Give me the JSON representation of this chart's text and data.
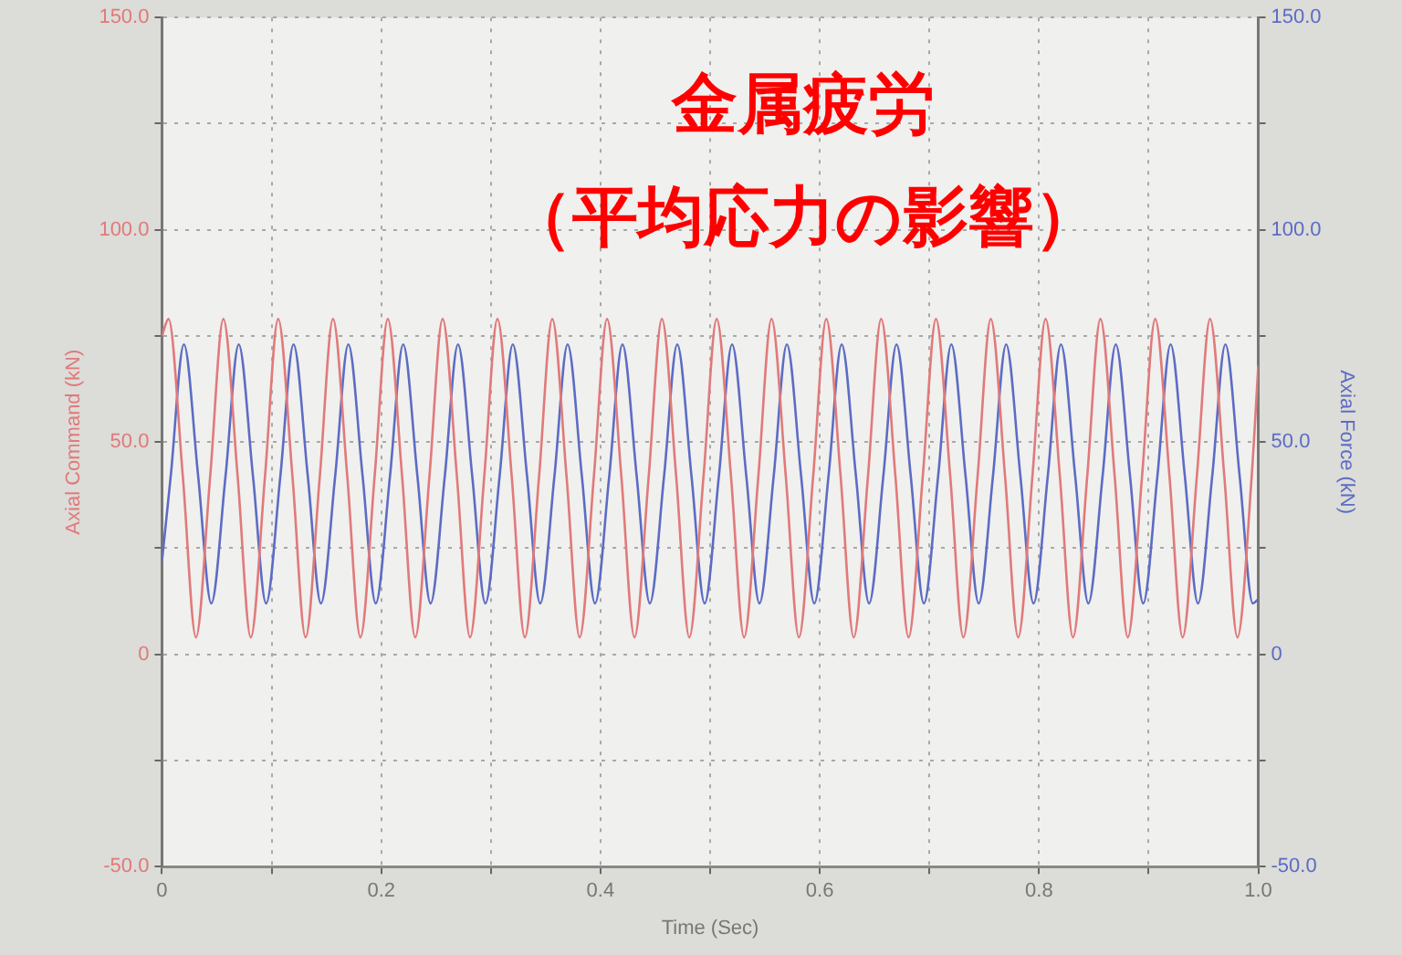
{
  "chart_data": {
    "type": "line",
    "title": "金属疲労",
    "subtitle": "（平均応力の影響）",
    "xlabel": "Time (Sec)",
    "ylabel": "Axial Command (kN)",
    "y2label": "Axial Force (kN)",
    "xlim": [
      0,
      1.0
    ],
    "xticks": [
      0,
      {
        "value": 0.1,
        "label": null
      },
      {
        "value": 0.2,
        "label": "0.2"
      },
      {
        "value": 0.3,
        "label": null
      },
      {
        "value": 0.4,
        "label": "0.4"
      },
      {
        "value": 0.5,
        "label": null
      },
      {
        "value": 0.6,
        "label": "0.6"
      },
      {
        "value": 0.7,
        "label": null
      },
      {
        "value": 0.8,
        "label": "0.8"
      },
      {
        "value": 0.9,
        "label": null
      },
      {
        "value": 1.0,
        "label": "1.0"
      }
    ],
    "ylim": [
      -50,
      150
    ],
    "yticks": [
      {
        "value": -50,
        "label": "-50.0"
      },
      {
        "value": -25,
        "label": null
      },
      0,
      {
        "value": 25,
        "label": null
      },
      {
        "value": 50,
        "label": "50.0"
      },
      {
        "value": 75,
        "label": null
      },
      {
        "value": 100,
        "label": "100.0"
      },
      {
        "value": 125,
        "label": null
      },
      {
        "value": 150,
        "label": "150.0"
      }
    ],
    "y2lim": [
      -50,
      150
    ],
    "y2ticks": [
      {
        "value": -50,
        "label": "-50.0"
      },
      {
        "value": -25,
        "label": null
      },
      0,
      {
        "value": 25,
        "label": null
      },
      {
        "value": 50,
        "label": "50.0"
      },
      {
        "value": 75,
        "label": null
      },
      {
        "value": 100,
        "label": "100.0"
      },
      {
        "value": 125,
        "label": null
      },
      {
        "value": 150,
        "label": "150.0"
      }
    ],
    "grid": true,
    "marker": "none",
    "line_style": "solid",
    "series": [
      {
        "color": "#e07a7a",
        "x": [
          0,
          0.006,
          0.019,
          0.031,
          0.044,
          0.056,
          0.069,
          0.081,
          0.094,
          0.106,
          0.119,
          0.131,
          0.144,
          0.156,
          0.169,
          0.181,
          0.194,
          0.206,
          0.219,
          0.231,
          0.244,
          0.256,
          0.269,
          0.281,
          0.294,
          0.306,
          0.319,
          0.331,
          0.344,
          0.356,
          0.369,
          0.381,
          0.394,
          0.406,
          0.419,
          0.431,
          0.444,
          0.456,
          0.469,
          0.481,
          0.494,
          0.506,
          0.519,
          0.531,
          0.544,
          0.556,
          0.569,
          0.581,
          0.594,
          0.606,
          0.619,
          0.631,
          0.644,
          0.656,
          0.669,
          0.681,
          0.694,
          0.706,
          0.719,
          0.731,
          0.744,
          0.756,
          0.769,
          0.781,
          0.794,
          0.806,
          0.819,
          0.831,
          0.844,
          0.856,
          0.869,
          0.881,
          0.894,
          0.906,
          0.919,
          0.931,
          0.944,
          0.956,
          0.969,
          0.981,
          0.994,
          1.0
        ],
        "values": [
          75,
          79,
          42,
          4,
          42,
          79,
          42,
          4,
          42,
          79,
          42,
          4,
          42,
          79,
          42,
          4,
          42,
          79,
          42,
          4,
          42,
          79,
          42,
          4,
          42,
          79,
          42,
          4,
          42,
          79,
          42,
          4,
          42,
          79,
          42,
          4,
          42,
          79,
          42,
          4,
          42,
          79,
          42,
          4,
          42,
          79,
          42,
          4,
          42,
          79,
          42,
          4,
          42,
          79,
          42,
          4,
          42,
          79,
          42,
          4,
          42,
          79,
          42,
          4,
          42,
          79,
          42,
          4,
          42,
          79,
          42,
          4,
          42,
          79,
          42,
          4,
          42,
          79,
          42,
          4,
          42,
          68
        ]
      },
      {
        "color": "#5c6cc4",
        "axis": "y2",
        "x": [
          0,
          0.008,
          0.02,
          0.033,
          0.045,
          0.058,
          0.07,
          0.083,
          0.095,
          0.108,
          0.12,
          0.133,
          0.145,
          0.158,
          0.17,
          0.183,
          0.195,
          0.208,
          0.22,
          0.233,
          0.245,
          0.258,
          0.27,
          0.283,
          0.295,
          0.308,
          0.32,
          0.333,
          0.345,
          0.358,
          0.37,
          0.383,
          0.395,
          0.408,
          0.42,
          0.433,
          0.445,
          0.458,
          0.47,
          0.483,
          0.495,
          0.508,
          0.52,
          0.533,
          0.545,
          0.558,
          0.57,
          0.583,
          0.595,
          0.608,
          0.62,
          0.633,
          0.645,
          0.658,
          0.67,
          0.683,
          0.695,
          0.708,
          0.72,
          0.733,
          0.745,
          0.758,
          0.77,
          0.783,
          0.795,
          0.808,
          0.82,
          0.833,
          0.845,
          0.858,
          0.87,
          0.883,
          0.895,
          0.908,
          0.92,
          0.933,
          0.945,
          0.958,
          0.97,
          0.983,
          0.995,
          1.0
        ],
        "values": [
          22,
          42,
          73,
          42,
          12,
          42,
          73,
          42,
          12,
          42,
          73,
          42,
          12,
          42,
          73,
          42,
          12,
          42,
          73,
          42,
          12,
          42,
          73,
          42,
          12,
          42,
          73,
          42,
          12,
          42,
          73,
          42,
          12,
          42,
          73,
          42,
          12,
          42,
          73,
          42,
          12,
          42,
          73,
          42,
          12,
          42,
          73,
          42,
          12,
          42,
          73,
          42,
          12,
          42,
          73,
          42,
          12,
          42,
          73,
          42,
          12,
          42,
          73,
          42,
          12,
          42,
          73,
          42,
          12,
          42,
          73,
          42,
          12,
          42,
          73,
          42,
          12,
          42,
          73,
          42,
          12,
          13
        ]
      }
    ]
  }
}
